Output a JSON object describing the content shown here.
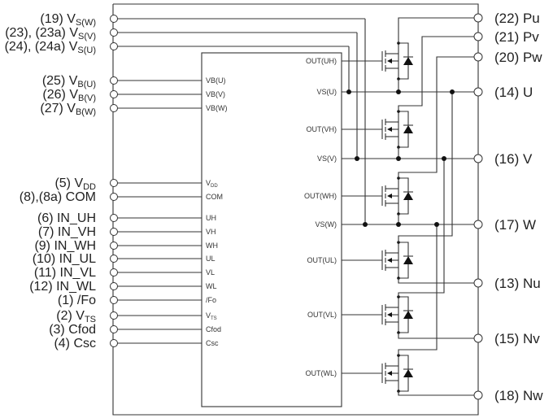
{
  "left_terminals": [
    {
      "id": "vs-w",
      "num": "(19) V",
      "sub": "S(W)",
      "pin": "",
      "pin_sub": ""
    },
    {
      "id": "vs-v",
      "num": "(23), (23a) V",
      "sub": "S(V)",
      "pin": "",
      "pin_sub": ""
    },
    {
      "id": "vs-u",
      "num": "(24), (24a) V",
      "sub": "S(U)",
      "pin": "",
      "pin_sub": ""
    },
    {
      "id": "vb-u",
      "num": "(25) V",
      "sub": "B(U)",
      "pin": "VB(U)",
      "pin_sub": ""
    },
    {
      "id": "vb-v",
      "num": "(26) V",
      "sub": "B(V)",
      "pin": "VB(V)",
      "pin_sub": ""
    },
    {
      "id": "vb-w",
      "num": "(27) V",
      "sub": "B(W)",
      "pin": "VB(W)",
      "pin_sub": ""
    },
    {
      "id": "vdd",
      "num": "(5) V",
      "sub": "DD",
      "pin": "V",
      "pin_sub": "DD"
    },
    {
      "id": "com",
      "num": "(8),(8a) COM",
      "sub": "",
      "pin": "COM",
      "pin_sub": ""
    },
    {
      "id": "in-uh",
      "num": "(6) IN_UH",
      "sub": "",
      "pin": "UH",
      "pin_sub": ""
    },
    {
      "id": "in-vh",
      "num": "(7) IN_VH",
      "sub": "",
      "pin": "VH",
      "pin_sub": ""
    },
    {
      "id": "in-wh",
      "num": "(9) IN_WH",
      "sub": "",
      "pin": "WH",
      "pin_sub": ""
    },
    {
      "id": "in-ul",
      "num": "(10) IN_UL",
      "sub": "",
      "pin": "UL",
      "pin_sub": ""
    },
    {
      "id": "in-vl",
      "num": "(11) IN_VL",
      "sub": "",
      "pin": "VL",
      "pin_sub": ""
    },
    {
      "id": "in-wl",
      "num": "(12) IN_WL",
      "sub": "",
      "pin": "WL",
      "pin_sub": ""
    },
    {
      "id": "fo",
      "num": "(1) /Fo",
      "sub": "",
      "pin": "/Fo",
      "pin_sub": ""
    },
    {
      "id": "vts",
      "num": "(2) V",
      "sub": "TS",
      "pin": "V",
      "pin_sub": "TS"
    },
    {
      "id": "cfod",
      "num": "(3) Cfod",
      "sub": "",
      "pin": "Cfod",
      "pin_sub": ""
    },
    {
      "id": "csc",
      "num": "(4) Csc",
      "sub": "",
      "pin": "Csc",
      "pin_sub": ""
    }
  ],
  "right_terminals": [
    {
      "id": "pu",
      "label": "(22) Pu"
    },
    {
      "id": "pv",
      "label": "(21) Pv"
    },
    {
      "id": "pw",
      "label": "(20) Pw"
    },
    {
      "id": "u",
      "label": "(14) U"
    },
    {
      "id": "v",
      "label": "(16) V"
    },
    {
      "id": "w",
      "label": "(17) W"
    },
    {
      "id": "nu",
      "label": "(13) Nu"
    },
    {
      "id": "nv",
      "label": "(15) Nv"
    },
    {
      "id": "nw",
      "label": "(18) Nw"
    }
  ],
  "ic_outputs": [
    {
      "id": "out-uh",
      "label": "OUT(UH)"
    },
    {
      "id": "vs-u",
      "label": "VS(U)"
    },
    {
      "id": "out-vh",
      "label": "OUT(VH)"
    },
    {
      "id": "vs-v",
      "label": "VS(V)"
    },
    {
      "id": "out-wh",
      "label": "OUT(WH)"
    },
    {
      "id": "vs-w",
      "label": "VS(W)"
    },
    {
      "id": "out-ul",
      "label": "OUT(UL)"
    },
    {
      "id": "out-vl",
      "label": "OUT(VL)"
    },
    {
      "id": "out-wl",
      "label": "OUT(WL)"
    }
  ]
}
